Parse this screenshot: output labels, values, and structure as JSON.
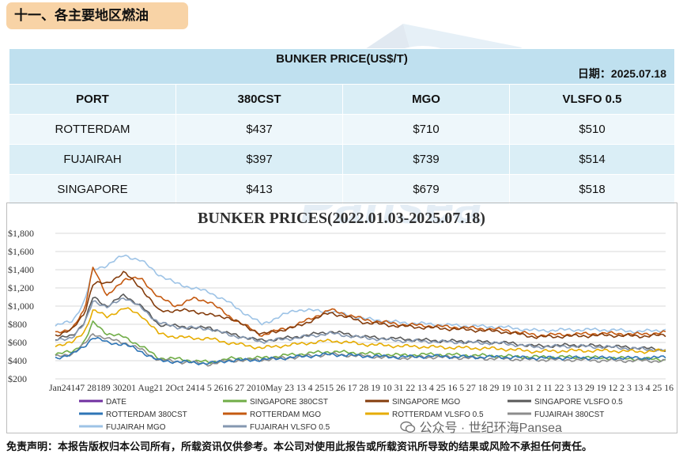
{
  "section": {
    "title": "十一、各主要地区燃油"
  },
  "table": {
    "title": "BUNKER PRICE(US$/T)",
    "date": "日期：2025.07.18",
    "headers": [
      "PORT",
      "380CST",
      "MGO",
      "VLSFO 0.5"
    ],
    "rows": [
      [
        "ROTTERDAM",
        "$437",
        "$710",
        "$510"
      ],
      [
        "FUJAIRAH",
        "$397",
        "$739",
        "$514"
      ],
      [
        "SINGAPORE",
        "$413",
        "$679",
        "$518"
      ]
    ]
  },
  "watermark": {
    "text": "Pansea",
    "icon": "pansea-logo-icon"
  },
  "chart_data": {
    "type": "line",
    "title": "BUNKER PRICES(2022.01.03-2025.07.18)",
    "ylim": [
      200,
      1800
    ],
    "y_ticks": [
      "$200",
      "$400",
      "$600",
      "$800",
      "$1,000",
      "$1,200",
      "$1,400",
      "$1,600",
      "$1,800"
    ],
    "x_tick_text": "Jan24147 28189 30201 Aug21 2Oct 2414 5 2616 27 2010May 23 13 4 2515 26 17 28 19 10 31 22 13 4 25 16 5 27 18 29 19 10 31 2 11 22 3 13 29 19 12 2 3 13 4 25 16",
    "grid": true,
    "legend_position": "bottom",
    "legend": [
      {
        "name": "DATE",
        "color": "#7030a0"
      },
      {
        "name": "SINGAPORE 380CST",
        "color": "#70ad47"
      },
      {
        "name": "SINGAPORE MGO",
        "color": "#843c0c"
      },
      {
        "name": "SINGAPORE VLSFO 0.5",
        "color": "#595959"
      },
      {
        "name": "ROTTERDAM 380CST",
        "color": "#2e75b6"
      },
      {
        "name": "ROTTERDAM MGO",
        "color": "#c55a11"
      },
      {
        "name": "ROTTERDAM VLSFO 0.5",
        "color": "#e6ac00"
      },
      {
        "name": "FUJAIRAH 380CST",
        "color": "#8c8c8c"
      },
      {
        "name": "FUJAIRAH MGO",
        "color": "#9dc3e6"
      },
      {
        "name": "FUJAIRAH VLSFO 0.5",
        "color": "#8497b0"
      }
    ],
    "x": [
      2022.0,
      2022.1,
      2022.17,
      2022.22,
      2022.3,
      2022.4,
      2022.5,
      2022.6,
      2022.7,
      2022.8,
      2022.9,
      2023.0,
      2023.2,
      2023.4,
      2023.6,
      2023.8,
      2024.0,
      2024.2,
      2024.4,
      2024.6,
      2024.8,
      2025.0,
      2025.2,
      2025.4,
      2025.55
    ],
    "series": [
      {
        "name": "FUJAIRAH MGO",
        "color": "#9dc3e6",
        "values": [
          780,
          840,
          1050,
          1400,
          1450,
          1560,
          1500,
          1350,
          1250,
          1200,
          1150,
          1050,
          800,
          960,
          940,
          860,
          820,
          800,
          780,
          770,
          730,
          740,
          740,
          720,
          739
        ]
      },
      {
        "name": "ROTTERDAM MGO",
        "color": "#c55a11",
        "values": [
          700,
          760,
          950,
          1450,
          1100,
          1300,
          1300,
          1100,
          1000,
          1080,
          1050,
          900,
          680,
          790,
          960,
          850,
          800,
          780,
          760,
          740,
          680,
          690,
          700,
          690,
          710
        ]
      },
      {
        "name": "SINGAPORE MGO",
        "color": "#843c0c",
        "values": [
          680,
          740,
          930,
          1250,
          1250,
          1370,
          1200,
          950,
          950,
          950,
          900,
          880,
          690,
          770,
          930,
          820,
          780,
          760,
          740,
          720,
          660,
          670,
          680,
          670,
          679
        ]
      },
      {
        "name": "SINGAPORE VLSFO 0.5",
        "color": "#595959",
        "values": [
          630,
          680,
          820,
          1100,
          1000,
          1120,
          1000,
          800,
          780,
          760,
          760,
          700,
          620,
          660,
          720,
          660,
          640,
          620,
          610,
          600,
          560,
          570,
          560,
          540,
          518
        ]
      },
      {
        "name": "FUJAIRAH VLSFO 0.5",
        "color": "#8497b0",
        "values": [
          620,
          660,
          800,
          1070,
          980,
          1100,
          980,
          820,
          770,
          760,
          750,
          690,
          610,
          650,
          700,
          650,
          620,
          610,
          600,
          590,
          550,
          560,
          550,
          530,
          514
        ]
      },
      {
        "name": "ROTTERDAM VLSFO 0.5",
        "color": "#e6ac00",
        "values": [
          570,
          600,
          720,
          960,
          880,
          980,
          900,
          700,
          660,
          650,
          640,
          600,
          540,
          580,
          620,
          580,
          560,
          550,
          540,
          530,
          500,
          510,
          510,
          500,
          510
        ]
      },
      {
        "name": "SINGAPORE 380CST",
        "color": "#70ad47",
        "values": [
          470,
          500,
          610,
          820,
          700,
          660,
          560,
          430,
          420,
          400,
          380,
          420,
          430,
          470,
          500,
          480,
          460,
          470,
          460,
          450,
          440,
          440,
          430,
          420,
          413
        ]
      },
      {
        "name": "FUJAIRAH 380CST",
        "color": "#8c8c8c",
        "values": [
          440,
          480,
          580,
          700,
          640,
          600,
          520,
          410,
          390,
          380,
          360,
          400,
          410,
          440,
          470,
          450,
          430,
          440,
          430,
          420,
          410,
          410,
          400,
          400,
          397
        ]
      },
      {
        "name": "ROTTERDAM 380CST",
        "color": "#2e75b6",
        "values": [
          430,
          470,
          560,
          660,
          600,
          580,
          500,
          400,
          390,
          380,
          370,
          400,
          410,
          440,
          470,
          450,
          440,
          450,
          440,
          440,
          430,
          430,
          430,
          430,
          437
        ]
      }
    ]
  },
  "footer": {
    "disclaimer": "免责声明：本报告版权归本公司所有，所载资讯仅供参考。本公司对使用此报告或所载资讯所导致的结果或风险不承担任何责任。",
    "wechat": "公众号 · 世纪环海Pansea"
  }
}
